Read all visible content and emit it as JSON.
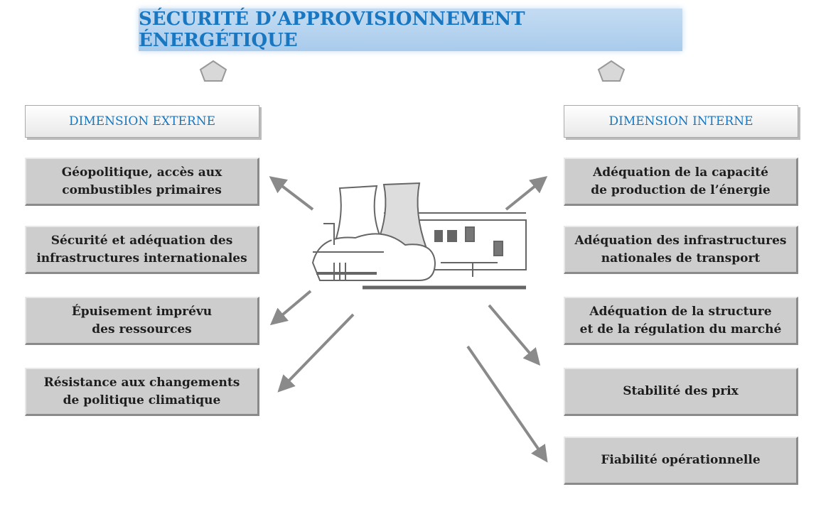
{
  "title": "SÉCURITÉ D’APPROVISIONNEMENT ÉNERGÉTIQUE",
  "left": {
    "header": "DIMENSION EXTERNE",
    "items": [
      {
        "lines": [
          "Géopolitique, accès aux",
          "combustibles primaires"
        ]
      },
      {
        "lines": [
          "Sécurité et adéquation des",
          "infrastructures internationales"
        ]
      },
      {
        "lines": [
          "Épuisement imprévu",
          "des ressources"
        ]
      },
      {
        "lines": [
          "Résistance aux changements",
          "de politique climatique"
        ]
      }
    ]
  },
  "right": {
    "header": "DIMENSION INTERNE",
    "items": [
      {
        "lines": [
          "Adéquation de la capacité",
          "de production de l’énergie"
        ]
      },
      {
        "lines": [
          "Adéquation des infrastructures",
          "nationales de transport"
        ]
      },
      {
        "lines": [
          "Adéquation de la structure",
          "et de la régulation du marché"
        ]
      },
      {
        "lines": [
          "Stabilité des prix"
        ]
      },
      {
        "lines": [
          "Fiabilité opérationnelle"
        ]
      }
    ]
  }
}
